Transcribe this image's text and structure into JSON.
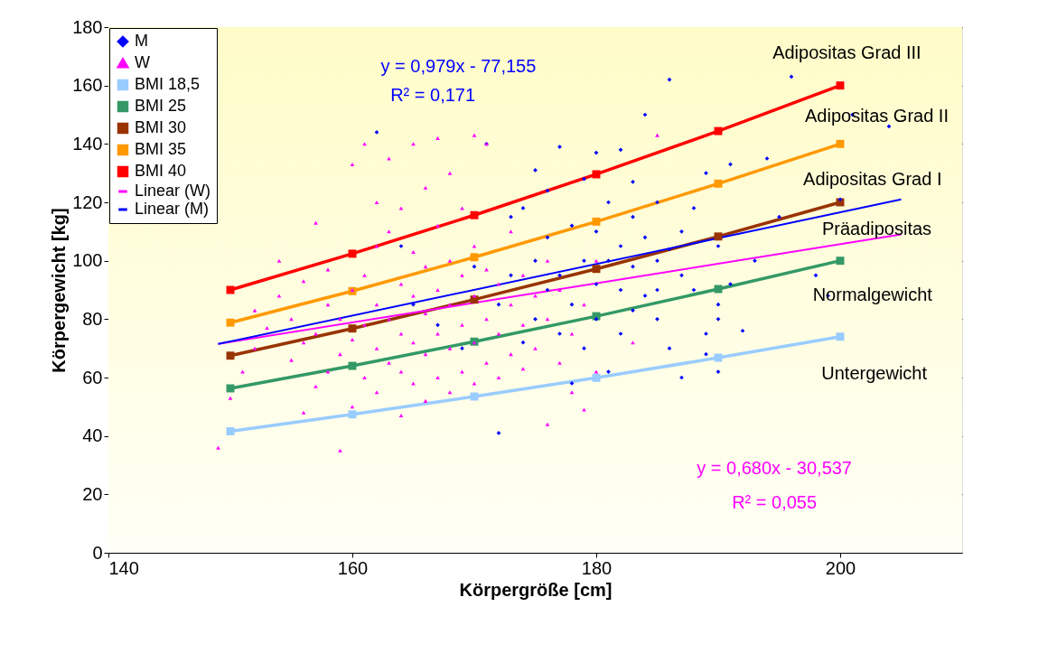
{
  "chart_data": {
    "type": "scatter",
    "xlabel": "Körpergröße [cm]",
    "ylabel": "Körpergewicht [kg]",
    "xlim": [
      140,
      210
    ],
    "xticks": [
      140,
      160,
      180,
      200
    ],
    "ylim": [
      0,
      180
    ],
    "yticks": [
      0,
      20,
      40,
      60,
      80,
      100,
      120,
      140,
      160,
      180
    ],
    "grid": "y",
    "legend": "top left",
    "series": [
      {
        "name": "M",
        "marker": "diamond",
        "color": "#0000ff",
        "x": [
          162,
          164,
          165,
          167,
          169,
          170,
          171,
          172,
          172,
          173,
          173,
          174,
          174,
          175,
          175,
          175,
          176,
          176,
          176,
          177,
          177,
          177,
          178,
          178,
          178,
          179,
          179,
          179,
          180,
          180,
          180,
          180,
          181,
          181,
          181,
          182,
          182,
          182,
          182,
          183,
          183,
          183,
          184,
          184,
          184,
          185,
          185,
          185,
          186,
          186,
          186,
          187,
          187,
          188,
          188,
          189,
          189,
          190,
          190,
          190,
          191,
          191,
          192,
          193,
          194,
          195,
          196,
          198,
          199,
          200,
          201,
          204,
          187,
          189,
          190,
          185,
          183
        ],
        "values": [
          144,
          105,
          85,
          78,
          70,
          98,
          140,
          41,
          85,
          115,
          95,
          72,
          118,
          100,
          131,
          80,
          90,
          108,
          124,
          139,
          75,
          95,
          112,
          85,
          58,
          128,
          100,
          70,
          137,
          110,
          92,
          80,
          120,
          100,
          62,
          138,
          105,
          90,
          75,
          127,
          98,
          115,
          150,
          108,
          88,
          120,
          100,
          80,
          162,
          104,
          70,
          110,
          95,
          90,
          118,
          75,
          130,
          105,
          85,
          62,
          133,
          92,
          76,
          100,
          135,
          115,
          163,
          95,
          88,
          121,
          150,
          146,
          60,
          68,
          80,
          90,
          83
        ]
      },
      {
        "name": "W",
        "marker": "triangle",
        "color": "#ff00ff",
        "x": [
          149,
          150,
          151,
          152,
          152,
          153,
          154,
          154,
          155,
          155,
          156,
          156,
          156,
          157,
          157,
          157,
          158,
          158,
          158,
          159,
          159,
          159,
          160,
          160,
          160,
          160,
          161,
          161,
          161,
          161,
          162,
          162,
          162,
          162,
          162,
          163,
          163,
          163,
          163,
          164,
          164,
          164,
          164,
          164,
          165,
          165,
          165,
          165,
          165,
          166,
          166,
          166,
          166,
          166,
          167,
          167,
          167,
          167,
          167,
          168,
          168,
          168,
          168,
          168,
          169,
          169,
          169,
          169,
          170,
          170,
          170,
          170,
          170,
          171,
          171,
          171,
          171,
          172,
          172,
          172,
          173,
          173,
          173,
          174,
          174,
          174,
          175,
          175,
          176,
          176,
          176,
          177,
          177,
          178,
          178,
          179,
          179,
          180,
          180,
          183,
          185
        ],
        "values": [
          36,
          53,
          62,
          70,
          83,
          77,
          100,
          88,
          66,
          80,
          48,
          72,
          93,
          57,
          75,
          113,
          62,
          85,
          97,
          35,
          68,
          80,
          133,
          50,
          73,
          90,
          140,
          60,
          78,
          95,
          120,
          55,
          70,
          85,
          105,
          135,
          65,
          80,
          110,
          47,
          62,
          75,
          92,
          118,
          140,
          58,
          72,
          88,
          103,
          52,
          68,
          82,
          98,
          125,
          142,
          60,
          75,
          90,
          112,
          55,
          70,
          85,
          100,
          130,
          62,
          78,
          95,
          118,
          143,
          58,
          72,
          88,
          105,
          65,
          80,
          97,
          140,
          60,
          75,
          92,
          68,
          85,
          110,
          63,
          78,
          95,
          70,
          88,
          44,
          80,
          100,
          65,
          90,
          55,
          75,
          49,
          85,
          62,
          100,
          72,
          143
        ]
      },
      {
        "name": "BMI 18,5",
        "type": "line",
        "marker": "square",
        "color": "#99ccff",
        "x": [
          150,
          160,
          170,
          180,
          190,
          200
        ],
        "values": [
          41.6,
          47.4,
          53.5,
          59.9,
          66.8,
          74
        ]
      },
      {
        "name": "BMI 25",
        "type": "line",
        "marker": "square",
        "color": "#339966",
        "x": [
          150,
          160,
          170,
          180,
          190,
          200
        ],
        "values": [
          56.3,
          64,
          72.3,
          81,
          90.3,
          100
        ]
      },
      {
        "name": "BMI 30",
        "type": "line",
        "marker": "square",
        "color": "#993300",
        "x": [
          150,
          160,
          170,
          180,
          190,
          200
        ],
        "values": [
          67.5,
          76.8,
          86.7,
          97.2,
          108.3,
          120
        ]
      },
      {
        "name": "BMI 35",
        "type": "line",
        "marker": "square",
        "color": "#ff9900",
        "x": [
          150,
          160,
          170,
          180,
          190,
          200
        ],
        "values": [
          78.8,
          89.6,
          101.2,
          113.4,
          126.4,
          140
        ]
      },
      {
        "name": "BMI 40",
        "type": "line",
        "marker": "square",
        "color": "#ff0000",
        "x": [
          150,
          160,
          170,
          180,
          190,
          200
        ],
        "values": [
          90,
          102.4,
          115.6,
          129.6,
          144.4,
          160
        ]
      },
      {
        "name": "Linear (W)",
        "type": "line",
        "marker": "none",
        "color": "#ff00ff",
        "x": [
          149,
          205
        ],
        "values": [
          71.5,
          109
        ]
      },
      {
        "name": "Linear (M)",
        "type": "line",
        "marker": "none",
        "color": "#0000ff",
        "x": [
          149,
          205
        ],
        "values": [
          71.5,
          121
        ]
      }
    ],
    "annotations": [
      "y = 0,979x - 77,155",
      "R² = 0,171",
      "y = 0,680x - 30,537",
      "R² = 0,055",
      "Adipositas Grad III",
      "Adipositas Grad II",
      "Adipositas Grad I",
      "Präadipositas",
      "Normalgewicht",
      "Untergewicht"
    ]
  }
}
